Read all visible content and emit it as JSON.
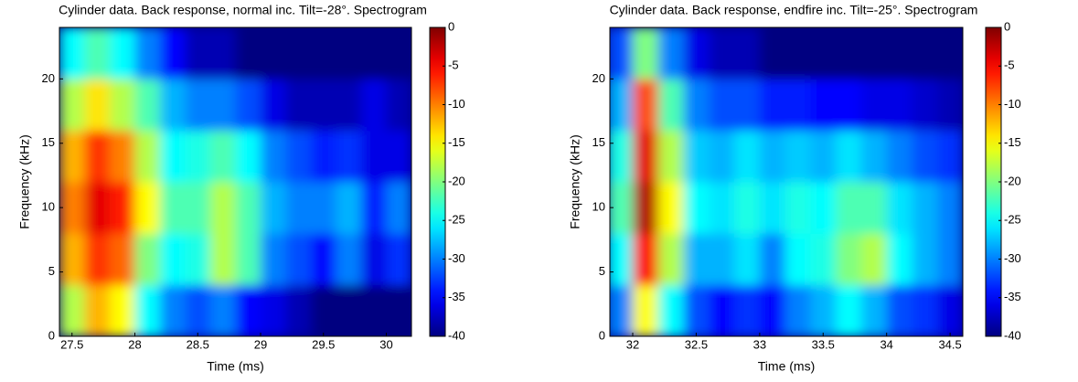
{
  "chart_data": [
    {
      "type": "heatmap",
      "colormap": "jet",
      "title": "Cylinder data. Back response, normal inc. Tilt=-28°. Spectrogram",
      "xlabel": "Time (ms)",
      "ylabel": "Frequency (kHz)",
      "x": [
        27.5,
        27.7,
        27.9,
        28.1,
        28.3,
        28.5,
        28.7,
        28.9,
        29.1,
        29.3,
        29.5,
        29.7,
        29.9,
        30.1
      ],
      "y": [
        2,
        6,
        10,
        14,
        18,
        22
      ],
      "z": [
        [
          -18,
          -12,
          -15,
          -25,
          -30,
          -32,
          -30,
          -35,
          -36,
          -38,
          -40,
          -40,
          -40,
          -40
        ],
        [
          -12,
          -7,
          -9,
          -20,
          -25,
          -24,
          -18,
          -22,
          -30,
          -32,
          -35,
          -30,
          -36,
          -33
        ],
        [
          -10,
          -4,
          -6,
          -15,
          -22,
          -22,
          -18,
          -22,
          -28,
          -30,
          -30,
          -28,
          -34,
          -30
        ],
        [
          -12,
          -7,
          -10,
          -18,
          -25,
          -24,
          -22,
          -25,
          -30,
          -32,
          -34,
          -33,
          -36,
          -36
        ],
        [
          -18,
          -14,
          -18,
          -22,
          -28,
          -30,
          -30,
          -32,
          -36,
          -38,
          -38,
          -38,
          -36,
          -38
        ],
        [
          -25,
          -22,
          -25,
          -30,
          -35,
          -38,
          -38,
          -40,
          -40,
          -40,
          -40,
          -40,
          -40,
          -40
        ]
      ],
      "xlim": [
        27.4,
        30.2
      ],
      "ylim": [
        0,
        24
      ],
      "xticks": [
        27.5,
        28,
        28.5,
        29,
        29.5,
        30
      ],
      "yticks": [
        0,
        5,
        10,
        15,
        20
      ],
      "clim": [
        -40,
        0
      ],
      "cticks": [
        0,
        -5,
        -10,
        -15,
        -20,
        -25,
        -30,
        -35,
        -40
      ]
    },
    {
      "type": "heatmap",
      "colormap": "jet",
      "title": "Cylinder data. Back response, endfire inc. Tilt=-25°. Spectrogram",
      "xlabel": "Time (ms)",
      "ylabel": "Frequency (kHz)",
      "x": [
        31.9,
        32.1,
        32.3,
        32.5,
        32.7,
        32.9,
        33.1,
        33.3,
        33.5,
        33.7,
        33.9,
        34.1,
        34.3,
        34.5
      ],
      "y": [
        2,
        6,
        10,
        14,
        18,
        22
      ],
      "z": [
        [
          -30,
          -15,
          -25,
          -32,
          -35,
          -33,
          -35,
          -30,
          -28,
          -25,
          -28,
          -32,
          -33,
          -36
        ],
        [
          -25,
          -5,
          -18,
          -28,
          -28,
          -26,
          -30,
          -25,
          -24,
          -20,
          -18,
          -25,
          -28,
          -30
        ],
        [
          -22,
          -2,
          -15,
          -25,
          -26,
          -24,
          -26,
          -24,
          -25,
          -22,
          -22,
          -26,
          -28,
          -30
        ],
        [
          -24,
          -4,
          -18,
          -27,
          -28,
          -26,
          -28,
          -27,
          -28,
          -26,
          -28,
          -30,
          -32,
          -33
        ],
        [
          -28,
          -8,
          -22,
          -30,
          -32,
          -32,
          -34,
          -34,
          -35,
          -35,
          -36,
          -36,
          -37,
          -38
        ],
        [
          -32,
          -20,
          -30,
          -36,
          -38,
          -38,
          -40,
          -40,
          -40,
          -40,
          -40,
          -40,
          -40,
          -40
        ]
      ],
      "xlim": [
        31.82,
        34.6
      ],
      "ylim": [
        0,
        24
      ],
      "xticks": [
        32,
        32.5,
        33,
        33.5,
        34,
        34.5
      ],
      "yticks": [
        0,
        5,
        10,
        15,
        20
      ],
      "clim": [
        -40,
        0
      ],
      "cticks": [
        0,
        -5,
        -10,
        -15,
        -20,
        -25,
        -30,
        -35,
        -40
      ]
    }
  ]
}
